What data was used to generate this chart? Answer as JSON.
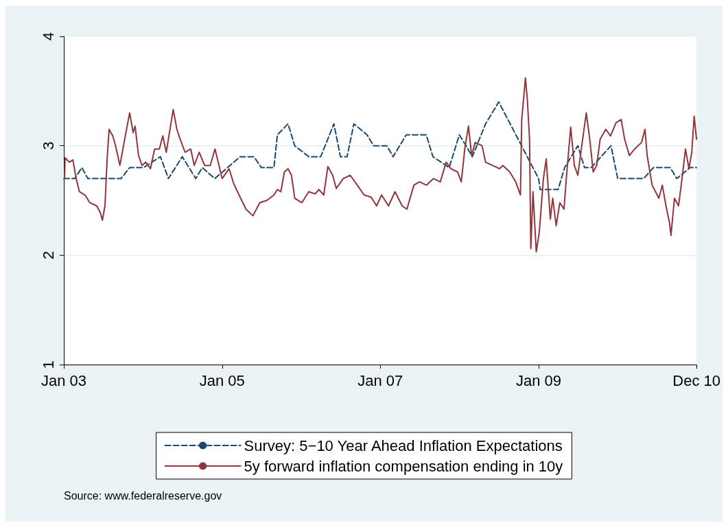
{
  "chart_data": {
    "type": "line",
    "xlim": [
      "2003-01-01",
      "2010-12-31"
    ],
    "xticks": [
      {
        "value": "2003-01-01",
        "label": "Jan 03"
      },
      {
        "value": "2005-01-01",
        "label": "Jan 05"
      },
      {
        "value": "2007-01-01",
        "label": "Jan 07"
      },
      {
        "value": "2009-01-01",
        "label": "Jan 09"
      },
      {
        "value": "2010-12-31",
        "label": "Dec 10"
      }
    ],
    "ylim": [
      1,
      4
    ],
    "yticks": [
      1,
      2,
      3,
      4
    ],
    "grid": "y",
    "legend": "bottom",
    "marker": "none",
    "annotations": [
      "Source: www.federalreserve.gov"
    ],
    "series": [
      {
        "name": "Survey: 5−10 Year Ahead Inflation Expectations",
        "color": "#1a476f",
        "line_style": "dashed",
        "x": [
          "2003-01-01",
          "2003-02-21",
          "2003-03-25",
          "2003-04-22",
          "2003-09-22",
          "2003-11-01",
          "2004-01-04",
          "2004-03-22",
          "2004-04-28",
          "2004-07-01",
          "2004-09-01",
          "2004-10-01",
          "2004-11-28",
          "2005-03-25",
          "2005-05-28",
          "2005-07-01",
          "2005-08-28",
          "2005-09-13",
          "2005-11-01",
          "2005-12-02",
          "2006-02-05",
          "2006-04-01",
          "2006-06-01",
          "2006-07-01",
          "2006-08-01",
          "2006-09-01",
          "2006-11-01",
          "2006-12-01",
          "2007-02-01",
          "2007-03-01",
          "2007-05-01",
          "2007-08-01",
          "2007-09-01",
          "2007-11-15",
          "2008-01-01",
          "2008-02-01",
          "2008-03-01",
          "2008-05-01",
          "2008-07-01",
          "2009-01-01",
          "2009-01-08",
          "2009-04-01",
          "2009-05-01",
          "2009-07-01",
          "2009-08-01",
          "2009-09-01",
          "2009-12-01",
          "2010-01-01",
          "2010-05-01",
          "2010-06-15",
          "2010-09-01",
          "2010-10-01",
          "2010-12-01",
          "2010-12-31"
        ],
        "values": [
          2.7,
          2.7,
          2.8,
          2.7,
          2.7,
          2.8,
          2.8,
          2.9,
          2.7,
          2.9,
          2.7,
          2.8,
          2.7,
          2.9,
          2.9,
          2.8,
          2.8,
          3.1,
          3.2,
          3.0,
          2.9,
          2.9,
          3.2,
          2.9,
          2.9,
          3.2,
          3.1,
          3.0,
          3.0,
          2.9,
          3.1,
          3.1,
          2.9,
          2.8,
          3.1,
          3.0,
          2.9,
          3.2,
          3.4,
          2.7,
          2.6,
          2.6,
          2.8,
          3.0,
          2.8,
          2.8,
          3.0,
          2.7,
          2.7,
          2.8,
          2.8,
          2.7,
          2.8,
          2.8
        ]
      },
      {
        "name": "5y forward inflation compensation ending in 10y",
        "color": "#90353b",
        "line_style": "solid",
        "x": [
          "2003-01-04",
          "2003-01-07",
          "2003-01-26",
          "2003-02-12",
          "2003-02-27",
          "2003-03-14",
          "2003-04-09",
          "2003-05-01",
          "2003-06-02",
          "2003-06-18",
          "2003-06-28",
          "2003-07-10",
          "2003-07-20",
          "2003-07-29",
          "2003-08-15",
          "2003-08-28",
          "2003-09-17",
          "2003-10-09",
          "2003-11-01",
          "2003-11-17",
          "2003-11-26",
          "2003-12-12",
          "2003-12-28",
          "2004-01-14",
          "2004-02-05",
          "2004-02-24",
          "2004-03-17",
          "2004-04-02",
          "2004-04-18",
          "2004-05-10",
          "2004-05-20",
          "2004-06-06",
          "2004-06-21",
          "2004-07-14",
          "2004-08-09",
          "2004-08-25",
          "2004-09-17",
          "2004-10-12",
          "2004-11-07",
          "2004-11-29",
          "2005-01-01",
          "2005-02-02",
          "2005-02-24",
          "2005-03-20",
          "2005-04-21",
          "2005-05-23",
          "2005-06-24",
          "2005-07-26",
          "2005-08-28",
          "2005-09-13",
          "2005-09-29",
          "2005-10-15",
          "2005-11-01",
          "2005-11-17",
          "2005-12-02",
          "2006-01-04",
          "2006-02-05",
          "2006-03-07",
          "2006-03-23",
          "2006-04-15",
          "2006-05-04",
          "2006-05-26",
          "2006-06-12",
          "2006-07-14",
          "2006-08-15",
          "2006-09-17",
          "2006-10-18",
          "2006-11-20",
          "2006-12-15",
          "2007-01-07",
          "2007-02-08",
          "2007-03-10",
          "2007-04-12",
          "2007-05-04",
          "2007-06-05",
          "2007-07-01",
          "2007-08-02",
          "2007-09-04",
          "2007-10-05",
          "2007-11-01",
          "2007-11-23",
          "2007-12-24",
          "2008-01-10",
          "2008-01-26",
          "2008-02-12",
          "2008-02-27",
          "2008-03-14",
          "2008-04-15",
          "2008-05-01",
          "2008-06-02",
          "2008-07-04",
          "2008-07-20",
          "2008-08-21",
          "2008-09-17",
          "2008-10-09",
          "2008-10-15",
          "2008-11-01",
          "2008-11-10",
          "2008-11-20",
          "2008-11-26",
          "2008-12-06",
          "2008-12-21",
          "2009-01-04",
          "2009-01-23",
          "2009-02-05",
          "2009-02-24",
          "2009-03-07",
          "2009-03-23",
          "2009-04-09",
          "2009-04-28",
          "2009-05-10",
          "2009-05-29",
          "2009-06-15",
          "2009-07-01",
          "2009-07-17",
          "2009-08-09",
          "2009-08-25",
          "2009-09-10",
          "2009-09-26",
          "2009-10-12",
          "2009-11-07",
          "2009-11-29",
          "2009-12-24",
          "2010-01-17",
          "2010-02-02",
          "2010-02-24",
          "2010-03-20",
          "2010-04-21",
          "2010-05-07",
          "2010-05-17",
          "2010-06-09",
          "2010-07-10",
          "2010-07-26",
          "2010-08-12",
          "2010-08-28",
          "2010-09-04",
          "2010-09-20",
          "2010-10-09",
          "2010-10-25",
          "2010-11-10",
          "2010-11-26",
          "2010-12-09",
          "2010-12-20",
          "2010-12-31"
        ],
        "values": [
          2.7,
          2.89,
          2.85,
          2.87,
          2.7,
          2.58,
          2.55,
          2.48,
          2.45,
          2.39,
          2.32,
          2.45,
          2.88,
          3.15,
          3.09,
          3.0,
          2.82,
          3.06,
          3.3,
          3.12,
          3.18,
          2.91,
          2.82,
          2.85,
          2.79,
          2.97,
          2.97,
          3.09,
          2.94,
          3.21,
          3.33,
          3.15,
          3.06,
          2.94,
          2.97,
          2.82,
          2.94,
          2.82,
          2.82,
          2.97,
          2.7,
          2.79,
          2.65,
          2.55,
          2.42,
          2.36,
          2.48,
          2.5,
          2.55,
          2.6,
          2.58,
          2.76,
          2.79,
          2.73,
          2.52,
          2.48,
          2.58,
          2.56,
          2.6,
          2.55,
          2.81,
          2.73,
          2.61,
          2.7,
          2.73,
          2.64,
          2.55,
          2.53,
          2.45,
          2.55,
          2.45,
          2.58,
          2.45,
          2.42,
          2.64,
          2.67,
          2.64,
          2.7,
          2.67,
          2.85,
          2.79,
          2.76,
          2.67,
          2.97,
          3.18,
          2.91,
          3.03,
          3.0,
          2.85,
          2.82,
          2.79,
          2.82,
          2.76,
          2.67,
          2.55,
          3.24,
          3.62,
          3.42,
          3.06,
          2.06,
          2.58,
          2.03,
          2.21,
          2.7,
          2.88,
          2.33,
          2.52,
          2.27,
          2.48,
          2.42,
          2.73,
          3.17,
          2.82,
          2.73,
          2.97,
          3.3,
          3.06,
          2.76,
          2.82,
          3.06,
          3.15,
          3.09,
          3.21,
          3.24,
          3.06,
          2.91,
          2.97,
          3.03,
          3.15,
          2.91,
          2.64,
          2.52,
          2.64,
          2.45,
          2.3,
          2.18,
          2.52,
          2.45,
          2.7,
          2.97,
          2.79,
          2.94,
          3.27,
          3.06
        ]
      }
    ]
  }
}
